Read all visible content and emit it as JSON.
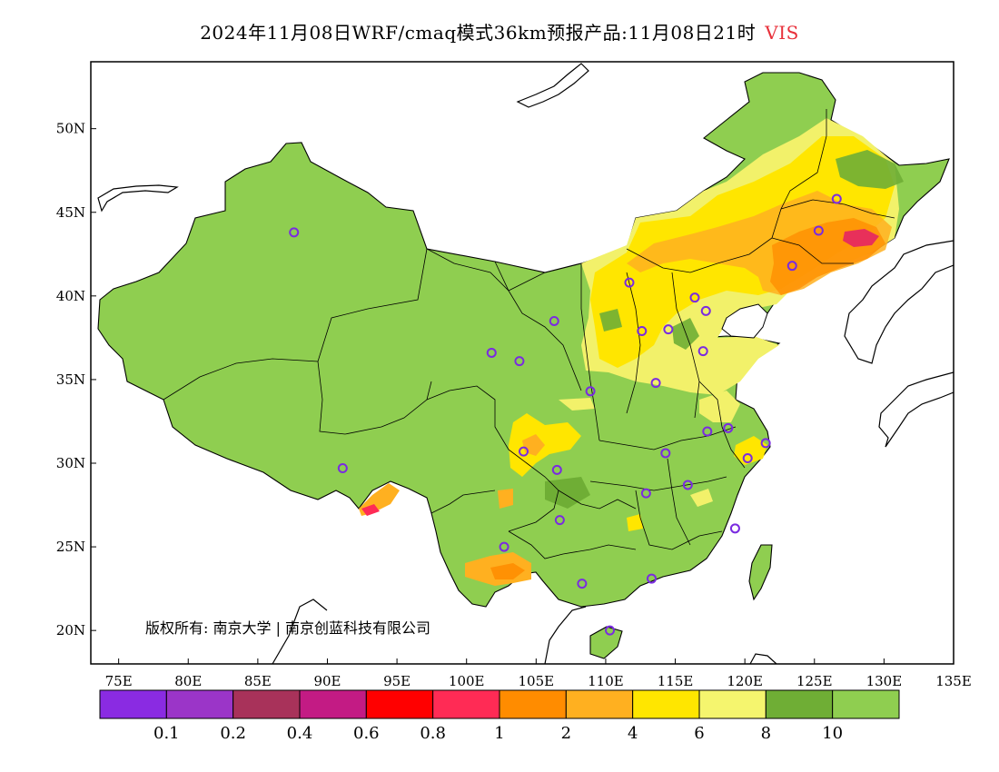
{
  "title": {
    "main": "2024年11月08日WRF/cmaq模式36km预报产品:11月08日21时",
    "variable": "VIS"
  },
  "copyright": "版权所有: 南京大学 | 南京创蓝科技有限公司",
  "map": {
    "lon_range": [
      73,
      135
    ],
    "lat_range": [
      18,
      54
    ],
    "lon_ticks": [
      "75E",
      "80E",
      "85E",
      "90E",
      "95E",
      "100E",
      "105E",
      "110E",
      "115E",
      "120E",
      "125E",
      "130E",
      "135E"
    ],
    "lat_ticks": [
      "20N",
      "25N",
      "30N",
      "35N",
      "40N",
      "45N",
      "50N"
    ],
    "colors": {
      "land_background": "#8fce50",
      "frame": "#000000",
      "station_marker": "#7a2be0"
    }
  },
  "legend": {
    "labels": [
      "0.1",
      "0.2",
      "0.4",
      "0.6",
      "0.8",
      "1",
      "2",
      "4",
      "6",
      "8",
      "10"
    ],
    "colors": [
      "#8a2be2",
      "#9b35c8",
      "#a8325a",
      "#c31b84",
      "#ff0000",
      "#ff2b55",
      "#ff8c00",
      "#ffb020",
      "#ffe600",
      "#f5f56e",
      "#6fae35",
      "#8fce50"
    ]
  },
  "stations": [
    {
      "lon": 87.6,
      "lat": 43.8
    },
    {
      "lon": 91.1,
      "lat": 29.7
    },
    {
      "lon": 101.8,
      "lat": 36.6
    },
    {
      "lon": 103.8,
      "lat": 36.1
    },
    {
      "lon": 106.3,
      "lat": 38.5
    },
    {
      "lon": 111.7,
      "lat": 40.8
    },
    {
      "lon": 116.4,
      "lat": 39.9
    },
    {
      "lon": 117.2,
      "lat": 39.1
    },
    {
      "lon": 112.6,
      "lat": 37.9
    },
    {
      "lon": 114.5,
      "lat": 38.0
    },
    {
      "lon": 117.0,
      "lat": 36.7
    },
    {
      "lon": 113.6,
      "lat": 34.8
    },
    {
      "lon": 108.9,
      "lat": 34.3
    },
    {
      "lon": 104.1,
      "lat": 30.7
    },
    {
      "lon": 106.5,
      "lat": 29.6
    },
    {
      "lon": 106.7,
      "lat": 26.6
    },
    {
      "lon": 102.7,
      "lat": 25.0
    },
    {
      "lon": 108.3,
      "lat": 22.8
    },
    {
      "lon": 113.3,
      "lat": 23.1
    },
    {
      "lon": 110.3,
      "lat": 20.0
    },
    {
      "lon": 112.9,
      "lat": 28.2
    },
    {
      "lon": 115.9,
      "lat": 28.7
    },
    {
      "lon": 114.3,
      "lat": 30.6
    },
    {
      "lon": 117.3,
      "lat": 31.9
    },
    {
      "lon": 118.8,
      "lat": 32.1
    },
    {
      "lon": 121.5,
      "lat": 31.2
    },
    {
      "lon": 120.2,
      "lat": 30.3
    },
    {
      "lon": 119.3,
      "lat": 26.1
    },
    {
      "lon": 123.4,
      "lat": 41.8
    },
    {
      "lon": 125.3,
      "lat": 43.9
    },
    {
      "lon": 126.6,
      "lat": 45.8
    }
  ]
}
